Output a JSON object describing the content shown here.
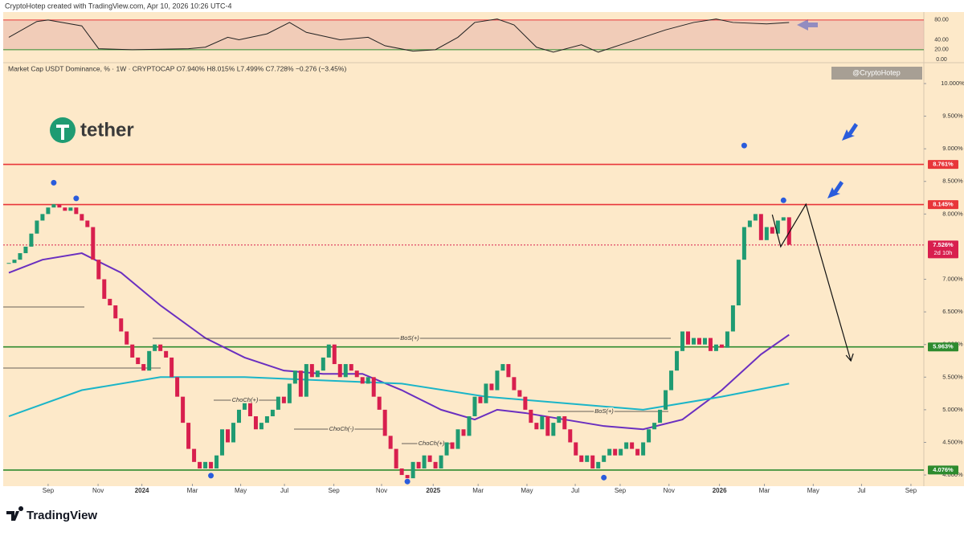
{
  "header": {
    "credit": "CryptoHotep created with TradingView.com, Apr 10, 2026 10:26 UTC-4"
  },
  "logo": "tether",
  "watermark": "@CryptoHotep",
  "unit_label": "%",
  "footer": "TradingView",
  "chart_data": {
    "type": "candlestick",
    "title": "Market Cap USDT Dominance, % · 1W · CRYPTOCAP  O7.940%  H8.015%  L7.499%  C7.728%  −0.276 (−3.45%)",
    "colors": {
      "up": "#1f9b72",
      "down": "#d81f4e"
    },
    "values": [
      7.25,
      7.3,
      7.4,
      7.5,
      7.7,
      7.9,
      8.0,
      8.1,
      8.15,
      8.1,
      8.05,
      8.1,
      8.0,
      7.9,
      7.8,
      7.3,
      7.0,
      6.7,
      6.6,
      6.4,
      6.2,
      6.0,
      5.8,
      5.7,
      5.6,
      5.9,
      6.0,
      5.9,
      5.8,
      5.5,
      5.2,
      4.8,
      4.4,
      4.2,
      4.1,
      4.2,
      4.1,
      4.3,
      4.7,
      4.5,
      4.8,
      5.0,
      5.1,
      4.9,
      4.7,
      4.8,
      4.9,
      5.0,
      5.2,
      5.1,
      5.4,
      5.6,
      5.2,
      5.7,
      5.5,
      5.6,
      5.8,
      6.0,
      5.7,
      5.5,
      5.7,
      5.6,
      5.5,
      5.4,
      5.5,
      5.2,
      5.0,
      4.6,
      4.4,
      4.1,
      4.0,
      3.95,
      4.2,
      4.1,
      4.3,
      4.2,
      4.1,
      4.3,
      4.5,
      4.4,
      4.7,
      4.6,
      4.9,
      5.2,
      5.1,
      5.4,
      5.3,
      5.6,
      5.7,
      5.5,
      5.3,
      5.2,
      5.0,
      4.8,
      4.7,
      4.9,
      4.6,
      4.8,
      4.9,
      4.7,
      4.5,
      4.3,
      4.2,
      4.3,
      4.1,
      4.2,
      4.3,
      4.4,
      4.3,
      4.4,
      4.5,
      4.4,
      4.3,
      4.5,
      4.7,
      4.8,
      5.0,
      5.3,
      5.6,
      5.9,
      6.2,
      6.0,
      6.1,
      6.0,
      6.1,
      5.9,
      6.0,
      5.95,
      6.2,
      6.6,
      7.3,
      7.8,
      7.9,
      8.0,
      7.6,
      7.8,
      7.7,
      7.9,
      7.95,
      7.53
    ],
    "xlim": [
      -1,
      163
    ],
    "ylim": [
      3.89,
      10.32
    ],
    "xticks": [
      {
        "value": 7,
        "label": "Sep"
      },
      {
        "value": 15.9,
        "label": "Nov"
      },
      {
        "value": 23.7,
        "label": "2024"
      },
      {
        "value": 32.7,
        "label": "Mar"
      },
      {
        "value": 41.3,
        "label": "May"
      },
      {
        "value": 49.1,
        "label": "Jul"
      },
      {
        "value": 57.9,
        "label": "Sep"
      },
      {
        "value": 66.4,
        "label": "Nov"
      },
      {
        "value": 75.6,
        "label": "2025"
      },
      {
        "value": 83.6,
        "label": "Mar"
      },
      {
        "value": 92.3,
        "label": "May"
      },
      {
        "value": 100.9,
        "label": "Jul"
      },
      {
        "value": 108.9,
        "label": "Sep"
      },
      {
        "value": 117.6,
        "label": "Nov"
      },
      {
        "value": 126.6,
        "label": "2026"
      },
      {
        "value": 134.6,
        "label": "Mar"
      },
      {
        "value": 143.3,
        "label": "May"
      },
      {
        "value": 151.9,
        "label": "Jul"
      },
      {
        "value": 160.7,
        "label": "Sep"
      }
    ],
    "yticks": [
      {
        "value": 4,
        "label": "4.000%"
      },
      {
        "value": 4.5,
        "label": "4.500%"
      },
      {
        "value": 5,
        "label": "5.000%"
      },
      {
        "value": 5.5,
        "label": "5.500%"
      },
      {
        "value": 6,
        "label": "6.000%"
      },
      {
        "value": 6.5,
        "label": "6.500%"
      },
      {
        "value": 7,
        "label": "7.000%"
      },
      {
        "value": 8,
        "label": "8.000%"
      },
      {
        "value": 8.5,
        "label": "8.500%"
      },
      {
        "value": 9,
        "label": "9.000%"
      },
      {
        "value": 9.5,
        "label": "9.500%"
      },
      {
        "value": 10,
        "label": "10.000%"
      }
    ],
    "levels": [
      {
        "value": 8.761,
        "label": "8.761%",
        "color": "#e8363a"
      },
      {
        "value": 8.145,
        "label": "8.145%",
        "color": "#e8363a"
      },
      {
        "value": 7.526,
        "label": "7.526%",
        "color": "#d81f4e",
        "countdown": "2d 10h",
        "dotted": true
      },
      {
        "value": 5.963,
        "label": "5.963%",
        "color": "#2e8b2e"
      },
      {
        "value": 4.076,
        "label": "4.076%",
        "color": "#2e8b2e"
      }
    ],
    "moving_averages": [
      {
        "color": "#6a2fc0",
        "x": [
          0,
          6,
          13,
          20,
          27,
          35,
          42,
          49,
          56,
          63,
          70,
          77,
          83,
          87,
          92,
          99,
          106,
          113,
          120,
          127,
          134,
          139
        ],
        "values": [
          7.1,
          7.3,
          7.4,
          7.1,
          6.6,
          6.1,
          5.8,
          5.6,
          5.55,
          5.55,
          5.3,
          5.0,
          4.85,
          5.0,
          4.95,
          4.85,
          4.75,
          4.7,
          4.85,
          5.3,
          5.85,
          6.15
        ]
      },
      {
        "color": "#1bb5c8",
        "x": [
          0,
          13,
          27,
          42,
          56,
          70,
          85,
          99,
          113,
          127,
          139
        ],
        "values": [
          4.9,
          5.3,
          5.5,
          5.5,
          5.45,
          5.4,
          5.2,
          5.1,
          5.0,
          5.2,
          5.4
        ]
      }
    ],
    "pivots": {
      "color": "#2a5cdc",
      "x": [
        8,
        12,
        36,
        71,
        106,
        131,
        138
      ],
      "values": [
        8.48,
        8.24,
        3.99,
        3.9,
        3.96,
        9.05,
        8.21
      ]
    },
    "projection": {
      "x": [
        136,
        137.5,
        142,
        150
      ],
      "values": [
        7.99,
        7.5,
        8.15,
        5.75
      ]
    },
    "annotations": [
      "BoS(+)",
      "ChoCh(+)",
      "ChoCh(-)",
      "ChoCh(+)",
      "BoS(+)"
    ],
    "rsi": {
      "ylim": [
        -3,
        96
      ],
      "yticks": [
        {
          "value": 80,
          "label": "80.00"
        },
        {
          "value": 40,
          "label": "40.00"
        },
        {
          "value": 20,
          "label": "20.00"
        },
        {
          "value": 0,
          "label": "0.00"
        }
      ],
      "band": [
        20,
        80
      ],
      "x": [
        0,
        5,
        7,
        13,
        16,
        22,
        32,
        35,
        39,
        41,
        46,
        50,
        53,
        59,
        64,
        67,
        72,
        76,
        80,
        83,
        87,
        90,
        94,
        97,
        102,
        105,
        109,
        113,
        117,
        122,
        126,
        129,
        135,
        139
      ],
      "values": [
        45,
        77,
        80,
        68,
        22,
        20,
        22,
        25,
        45,
        40,
        52,
        75,
        55,
        40,
        45,
        28,
        17,
        20,
        45,
        75,
        82,
        70,
        25,
        15,
        30,
        15,
        30,
        45,
        60,
        75,
        82,
        75,
        72,
        75
      ]
    }
  }
}
